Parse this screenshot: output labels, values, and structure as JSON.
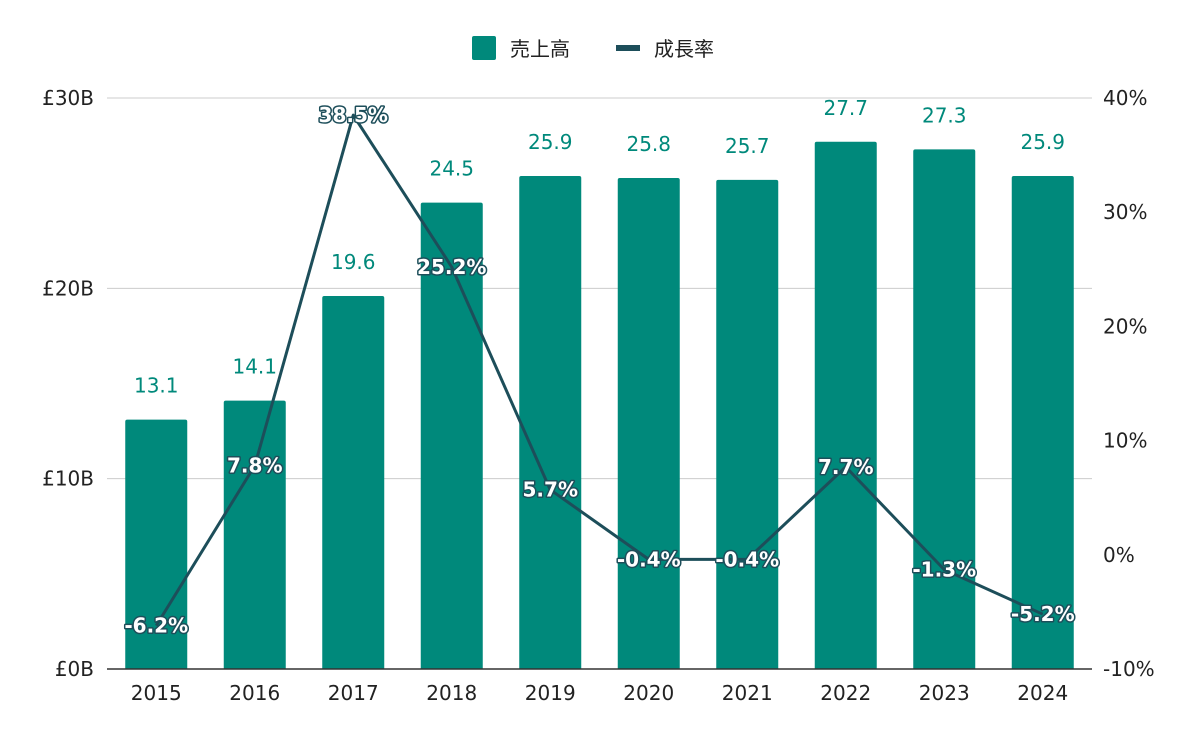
{
  "chart_data": {
    "type": "bar",
    "categories": [
      "2015",
      "2016",
      "2017",
      "2018",
      "2019",
      "2020",
      "2021",
      "2022",
      "2023",
      "2024"
    ],
    "series": [
      {
        "name": "売上高",
        "type": "bar",
        "axis": "left",
        "color": "#00897b",
        "values": [
          13.1,
          14.1,
          19.6,
          24.5,
          25.9,
          25.8,
          25.7,
          27.7,
          27.3,
          25.9
        ],
        "labels": [
          "13.1",
          "14.1",
          "19.6",
          "24.5",
          "25.9",
          "25.8",
          "25.7",
          "27.7",
          "27.3",
          "25.9"
        ]
      },
      {
        "name": "成長率",
        "type": "line",
        "axis": "right",
        "color": "#1d4e5a",
        "values": [
          -6.2,
          7.8,
          38.5,
          25.2,
          5.7,
          -0.4,
          -0.4,
          7.7,
          -1.3,
          -5.2
        ],
        "labels": [
          "-6.2%",
          "7.8%",
          "38.5%",
          "25.2%",
          "5.7%",
          "-0.4%",
          "-0.4%",
          "7.7%",
          "-1.3%",
          "-5.2%"
        ]
      }
    ],
    "y_left": {
      "ylim": [
        0,
        30
      ],
      "ticks": [
        0,
        10,
        20,
        30
      ],
      "tick_labels": [
        "£0B",
        "£10B",
        "£20B",
        "£30B"
      ]
    },
    "y_right": {
      "ylim": [
        -10,
        40
      ],
      "ticks": [
        -10,
        0,
        10,
        20,
        30,
        40
      ],
      "tick_labels": [
        "-10%",
        "0%",
        "10%",
        "20%",
        "30%",
        "40%"
      ]
    },
    "grid": true,
    "legend_position": "top-center"
  }
}
